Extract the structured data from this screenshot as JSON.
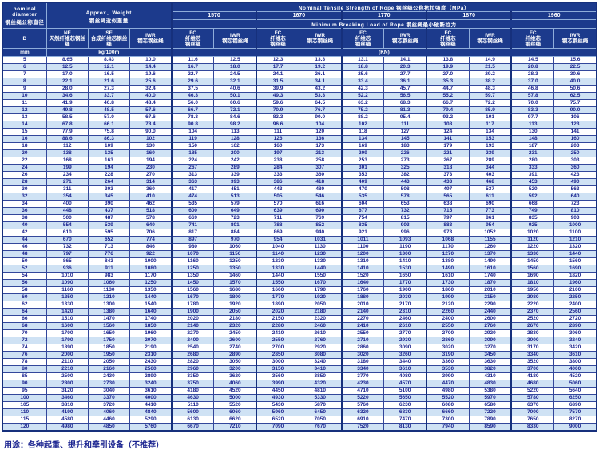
{
  "table": {
    "corner_label": "nominal\ndiameter\n钢丝绳公称直径",
    "weight_header": "Approx．Weight\n钢丝绳近似重量",
    "strength_title": "Nominal Tensile Strength of Rope 钢丝绳公称抗拉强度（MPa）",
    "breaking_title": "Minimum Breaking Load of Rope 钢丝绳最小破断拉力",
    "grades": [
      "1570",
      "1670",
      "1770",
      "1870",
      "1960"
    ],
    "d_label": "D",
    "d_unit": "mm",
    "weight_unit": "kg/100m",
    "load_unit": "(KN)",
    "weight_columns": {
      "nf": "NF\n天然纤维芯钢丝绳",
      "sf": "SF\n合成纤维芯钢丝绳",
      "iwr": "IWR\n钢芯钢丝绳"
    },
    "load_columns": {
      "fc": "FC\n纤维芯\n钢丝绳",
      "iwr": "IWR\n钢芯钢丝绳"
    },
    "rows": [
      [
        "5",
        "8.65",
        "8.43",
        "10.0",
        "11.6",
        "12.5",
        "12.3",
        "13.3",
        "13.1",
        "14.1",
        "13.8",
        "14.9",
        "14.5",
        "15.6"
      ],
      [
        "6",
        "12.5",
        "12.1",
        "14.4",
        "16.7",
        "18.0",
        "17.7",
        "19.2",
        "18.8",
        "20.3",
        "19.9",
        "21.5",
        "20.8",
        "22.5"
      ],
      [
        "7",
        "17.0",
        "16.5",
        "19.6",
        "22.7",
        "24.5",
        "24.1",
        "26.1",
        "25.6",
        "27.7",
        "27.0",
        "29.2",
        "28.3",
        "30.6"
      ],
      [
        "8",
        "22.1",
        "21.6",
        "25.6",
        "29.6",
        "32.1",
        "31.5",
        "34.1",
        "33.4",
        "36.1",
        "35.3",
        "38.2",
        "37.0",
        "40.0"
      ],
      [
        "9",
        "28.0",
        "27.3",
        "32.4",
        "37.5",
        "40.6",
        "39.9",
        "43.2",
        "42.3",
        "45.7",
        "44.7",
        "48.3",
        "46.8",
        "50.6"
      ],
      [
        "10",
        "34.6",
        "33.7",
        "40.0",
        "46.3",
        "50.1",
        "49.3",
        "53.3",
        "52.2",
        "56.5",
        "55.2",
        "59.7",
        "57.8",
        "62.5"
      ],
      [
        "11",
        "41.9",
        "40.8",
        "48.4",
        "56.0",
        "60.6",
        "59.6",
        "64.5",
        "63.2",
        "68.3",
        "66.7",
        "72.2",
        "70.0",
        "75.7"
      ],
      [
        "12",
        "49.8",
        "48.5",
        "57.6",
        "66.7",
        "72.1",
        "70.9",
        "76.7",
        "75.2",
        "81.3",
        "79.4",
        "85.9",
        "83.3",
        "90.0"
      ],
      [
        "13",
        "58.5",
        "57.0",
        "67.6",
        "78.3",
        "84.6",
        "83.3",
        "90.0",
        "88.2",
        "95.4",
        "93.2",
        "101",
        "97.7",
        "106"
      ],
      [
        "14",
        "67.8",
        "66.1",
        "78.4",
        "90.8",
        "98.2",
        "96.6",
        "104",
        "102",
        "111",
        "108",
        "117",
        "113",
        "123"
      ],
      [
        "15",
        "77.9",
        "75.8",
        "90.0",
        "104",
        "113",
        "111",
        "120",
        "118",
        "127",
        "124",
        "134",
        "130",
        "141"
      ],
      [
        "16",
        "88.6",
        "86.3",
        "102",
        "119",
        "128",
        "126",
        "136",
        "134",
        "145",
        "141",
        "153",
        "148",
        "160"
      ],
      [
        "18",
        "112",
        "109",
        "130",
        "150",
        "162",
        "160",
        "173",
        "169",
        "183",
        "179",
        "193",
        "187",
        "203"
      ],
      [
        "20",
        "138",
        "135",
        "160",
        "185",
        "200",
        "197",
        "213",
        "209",
        "226",
        "221",
        "239",
        "231",
        "250"
      ],
      [
        "22",
        "168",
        "163",
        "194",
        "224",
        "242",
        "238",
        "258",
        "253",
        "273",
        "267",
        "289",
        "280",
        "303"
      ],
      [
        "24",
        "199",
        "194",
        "230",
        "267",
        "289",
        "284",
        "307",
        "301",
        "325",
        "318",
        "344",
        "333",
        "360"
      ],
      [
        "26",
        "234",
        "228",
        "270",
        "313",
        "339",
        "333",
        "360",
        "353",
        "382",
        "373",
        "403",
        "391",
        "423"
      ],
      [
        "28",
        "271",
        "264",
        "314",
        "363",
        "393",
        "386",
        "418",
        "409",
        "443",
        "433",
        "468",
        "453",
        "490"
      ],
      [
        "30",
        "311",
        "303",
        "360",
        "417",
        "451",
        "443",
        "480",
        "470",
        "508",
        "497",
        "537",
        "520",
        "563"
      ],
      [
        "32",
        "354",
        "345",
        "410",
        "474",
        "513",
        "505",
        "546",
        "535",
        "578",
        "565",
        "611",
        "592",
        "640"
      ],
      [
        "34",
        "400",
        "390",
        "462",
        "535",
        "579",
        "570",
        "616",
        "604",
        "653",
        "638",
        "690",
        "668",
        "723"
      ],
      [
        "36",
        "448",
        "437",
        "518",
        "600",
        "649",
        "639",
        "690",
        "677",
        "732",
        "715",
        "773",
        "749",
        "810"
      ],
      [
        "38",
        "500",
        "487",
        "578",
        "669",
        "723",
        "711",
        "769",
        "754",
        "815",
        "797",
        "861",
        "835",
        "903"
      ],
      [
        "40",
        "554",
        "539",
        "640",
        "741",
        "801",
        "788",
        "852",
        "835",
        "903",
        "883",
        "954",
        "925",
        "1000"
      ],
      [
        "42",
        "610",
        "595",
        "706",
        "817",
        "884",
        "869",
        "940",
        "921",
        "996",
        "973",
        "1052",
        "1020",
        "1100"
      ],
      [
        "44",
        "670",
        "652",
        "774",
        "897",
        "970",
        "954",
        "1031",
        "1011",
        "1093",
        "1068",
        "1155",
        "1120",
        "1210"
      ],
      [
        "46",
        "732",
        "713",
        "846",
        "980",
        "1060",
        "1040",
        "1130",
        "1100",
        "1190",
        "1170",
        "1260",
        "1220",
        "1320"
      ],
      [
        "48",
        "797",
        "776",
        "922",
        "1070",
        "1150",
        "1140",
        "1230",
        "1200",
        "1300",
        "1270",
        "1370",
        "1330",
        "1440"
      ],
      [
        "50",
        "865",
        "843",
        "1000",
        "1160",
        "1250",
        "1230",
        "1330",
        "1310",
        "1410",
        "1380",
        "1490",
        "1450",
        "1560"
      ],
      [
        "52",
        "936",
        "911",
        "1080",
        "1250",
        "1350",
        "1330",
        "1440",
        "1410",
        "1530",
        "1490",
        "1610",
        "1560",
        "1690"
      ],
      [
        "54",
        "1010",
        "983",
        "1170",
        "1350",
        "1460",
        "1440",
        "1550",
        "1520",
        "1650",
        "1610",
        "1740",
        "1690",
        "1820"
      ],
      [
        "56",
        "1090",
        "1060",
        "1250",
        "1450",
        "1570",
        "1550",
        "1670",
        "1640",
        "1770",
        "1730",
        "1870",
        "1810",
        "1960"
      ],
      [
        "58",
        "1160",
        "1130",
        "1350",
        "1560",
        "1680",
        "1660",
        "1790",
        "1760",
        "1900",
        "1860",
        "2010",
        "1950",
        "2100"
      ],
      [
        "60",
        "1250",
        "1210",
        "1440",
        "1670",
        "1800",
        "1770",
        "1920",
        "1880",
        "2030",
        "1990",
        "2150",
        "2080",
        "2250"
      ],
      [
        "62",
        "1330",
        "1300",
        "1540",
        "1780",
        "1920",
        "1890",
        "2050",
        "2010",
        "2170",
        "2120",
        "2290",
        "2220",
        "2400"
      ],
      [
        "64",
        "1420",
        "1380",
        "1640",
        "1900",
        "2050",
        "2020",
        "2180",
        "2140",
        "2310",
        "2260",
        "2440",
        "2370",
        "2560"
      ],
      [
        "66",
        "1510",
        "1470",
        "1740",
        "2020",
        "2180",
        "2150",
        "2320",
        "2270",
        "2460",
        "2400",
        "2600",
        "2520",
        "2720"
      ],
      [
        "68",
        "1600",
        "1560",
        "1850",
        "2140",
        "2320",
        "2280",
        "2460",
        "2410",
        "2610",
        "2550",
        "2760",
        "2670",
        "2890"
      ],
      [
        "70",
        "1700",
        "1650",
        "1960",
        "2270",
        "2450",
        "2410",
        "2610",
        "2550",
        "2770",
        "2700",
        "2920",
        "2830",
        "3060"
      ],
      [
        "72",
        "1790",
        "1750",
        "2070",
        "2400",
        "2600",
        "2550",
        "2760",
        "2710",
        "2930",
        "2860",
        "3090",
        "3000",
        "3240"
      ],
      [
        "74",
        "1890",
        "1850",
        "2190",
        "2540",
        "2740",
        "2700",
        "2920",
        "2860",
        "3090",
        "3020",
        "3270",
        "3170",
        "3420"
      ],
      [
        "76",
        "2000",
        "1950",
        "2310",
        "2680",
        "2890",
        "2850",
        "3080",
        "3020",
        "3260",
        "3190",
        "3450",
        "3340",
        "3610"
      ],
      [
        "78",
        "2110",
        "2050",
        "2430",
        "2820",
        "3050",
        "3000",
        "3240",
        "3180",
        "3440",
        "3360",
        "3630",
        "3520",
        "3800"
      ],
      [
        "80",
        "2210",
        "2160",
        "2560",
        "2960",
        "3200",
        "3150",
        "3410",
        "3340",
        "3610",
        "3530",
        "3820",
        "3700",
        "4000"
      ],
      [
        "85",
        "2500",
        "2430",
        "2890",
        "3350",
        "3620",
        "3560",
        "3850",
        "3770",
        "4080",
        "3990",
        "4310",
        "4180",
        "4520"
      ],
      [
        "90",
        "2800",
        "2730",
        "3240",
        "3750",
        "4060",
        "3990",
        "4320",
        "4230",
        "4570",
        "4470",
        "4830",
        "4680",
        "5060"
      ],
      [
        "95",
        "3120",
        "3040",
        "3610",
        "4180",
        "4520",
        "4450",
        "4810",
        "4710",
        "5100",
        "4980",
        "5380",
        "5220",
        "5640"
      ],
      [
        "100",
        "3460",
        "3370",
        "4000",
        "4630",
        "5000",
        "4930",
        "5330",
        "5220",
        "5650",
        "5520",
        "5970",
        "5780",
        "6250"
      ],
      [
        "105",
        "3810",
        "3720",
        "4410",
        "5110",
        "5520",
        "5430",
        "5870",
        "5760",
        "6230",
        "6080",
        "6580",
        "6370",
        "6890"
      ],
      [
        "110",
        "4190",
        "4060",
        "4840",
        "5600",
        "6060",
        "5960",
        "6450",
        "6320",
        "6830",
        "6660",
        "7220",
        "7000",
        "7570"
      ],
      [
        "115",
        "4580",
        "4460",
        "5290",
        "6130",
        "6620",
        "6520",
        "7050",
        "6910",
        "7470",
        "7300",
        "7890",
        "7650",
        "8270"
      ],
      [
        "120",
        "4980",
        "4850",
        "5760",
        "6670",
        "7210",
        "7090",
        "7670",
        "7520",
        "8130",
        "7940",
        "8590",
        "8330",
        "9000"
      ]
    ]
  },
  "footer": {
    "usage": "用途：各种起重、提升和牵引设备（不推荐）"
  },
  "colors": {
    "header_bg": "#1c3a8c",
    "row_alt_bg": "#cfe2f4",
    "text_navy": "#1b2490",
    "border_navy": "#16307c"
  }
}
